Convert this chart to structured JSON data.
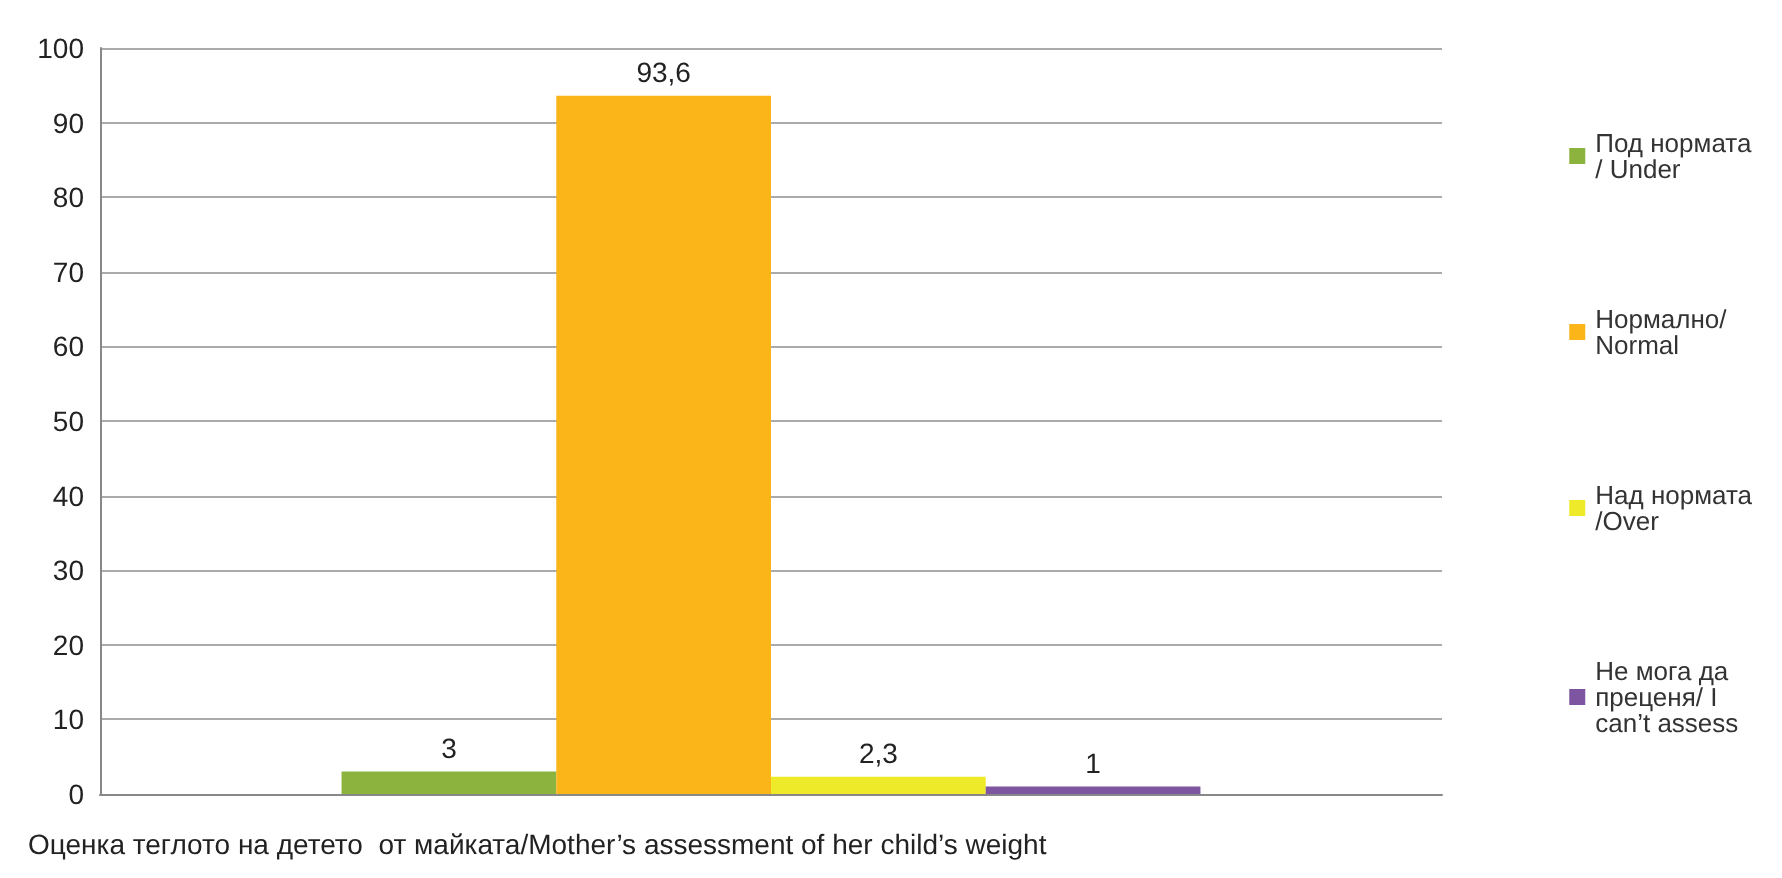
{
  "chart_data": {
    "type": "bar",
    "categories": [
      null
    ],
    "xlabel": "Оценка теглото на детето  от майката/Mother’s assessment of her child’s weight",
    "series": [
      {
        "name": "Под нормата/ Under",
        "color": "#8cb33e",
        "values": [
          3
        ],
        "value_labels": [
          "3"
        ]
      },
      {
        "name": "Нормално/ Normal",
        "color": "#fbb519",
        "values": [
          93.6
        ],
        "value_labels": [
          "93,6"
        ]
      },
      {
        "name": "Над нормата/Over",
        "color": "#eeea2a",
        "values": [
          2.3
        ],
        "value_labels": [
          "2,3"
        ]
      },
      {
        "name": "Не мога да преценя/ I can’t assess",
        "color": "#7d55a0",
        "values": [
          1
        ],
        "value_labels": [
          "1"
        ]
      }
    ],
    "ylim": [
      0,
      100
    ],
    "yticks": [
      0,
      10,
      20,
      30,
      40,
      50,
      60,
      70,
      80,
      90,
      100
    ],
    "grid": "y",
    "legend": "right"
  }
}
